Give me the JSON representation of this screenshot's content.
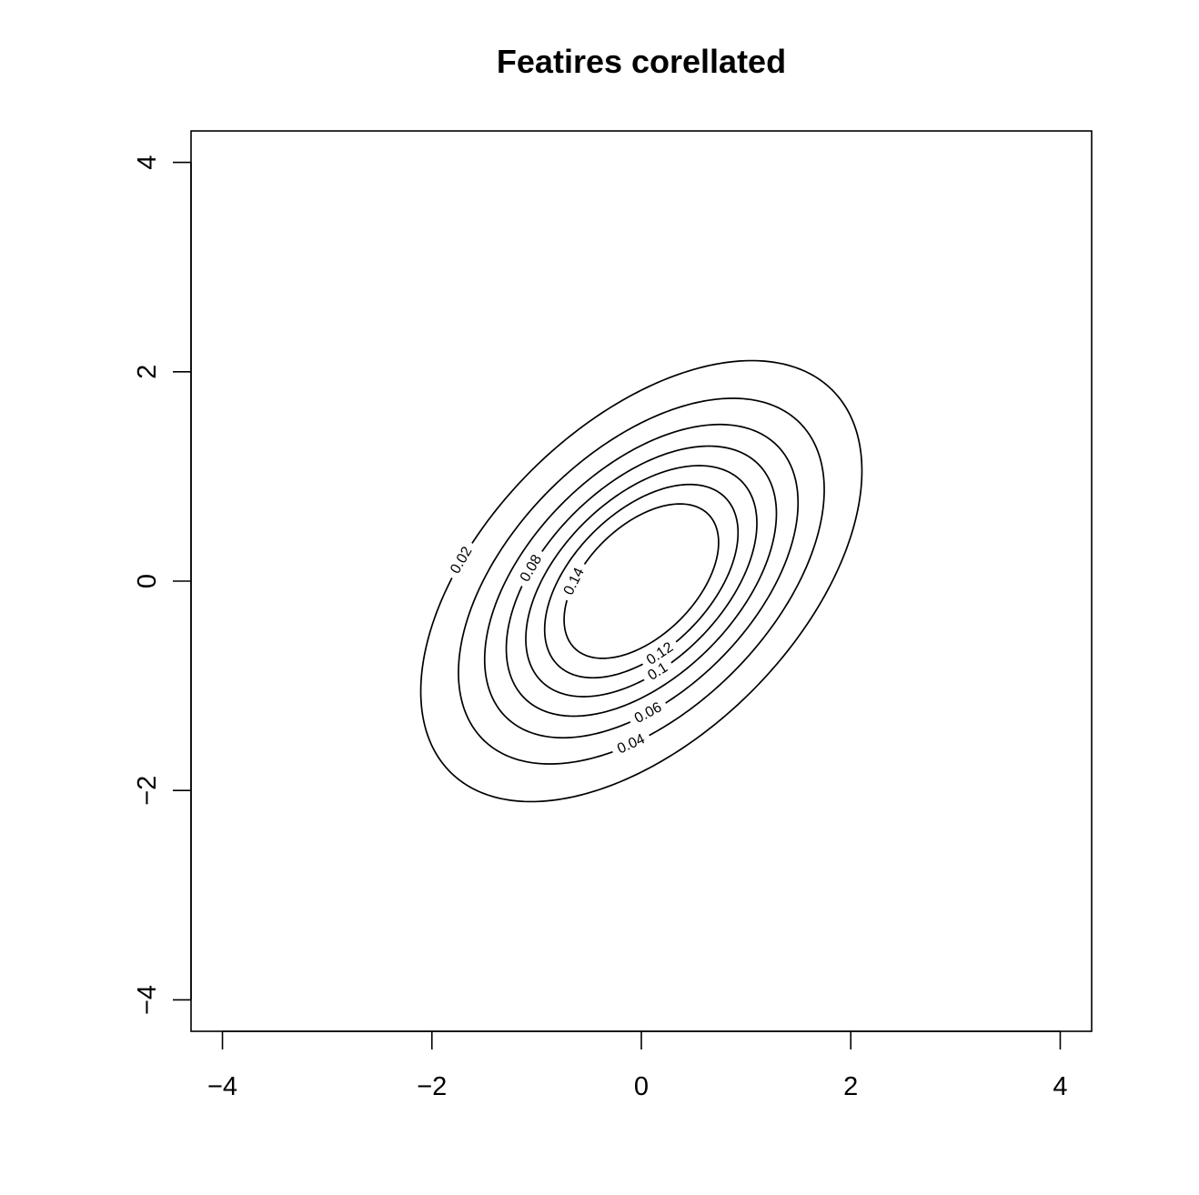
{
  "chart_data": {
    "type": "contour",
    "title": "Featires corellated",
    "xlabel": "",
    "ylabel": "",
    "xlim": [
      -4.3,
      4.3
    ],
    "ylim": [
      -4.3,
      4.3
    ],
    "x_ticks": [
      -4,
      -2,
      0,
      2,
      4
    ],
    "y_ticks": [
      -4,
      -2,
      0,
      2,
      4
    ],
    "x_tick_labels": [
      "−4",
      "−2",
      "0",
      "2",
      "4"
    ],
    "y_tick_labels": [
      "−4",
      "−2",
      "0",
      "2",
      "4"
    ],
    "distribution": {
      "mean": [
        0,
        0
      ],
      "variance_x": 1,
      "variance_y": 1,
      "correlation": 0.5
    },
    "levels": [
      0.02,
      0.04,
      0.06,
      0.08,
      0.1,
      0.12,
      0.14
    ],
    "level_labels": [
      "0.02",
      "0.04",
      "0.06",
      "0.08",
      "0.1",
      "0.12",
      "0.14"
    ],
    "grid": false,
    "legend": "none"
  }
}
